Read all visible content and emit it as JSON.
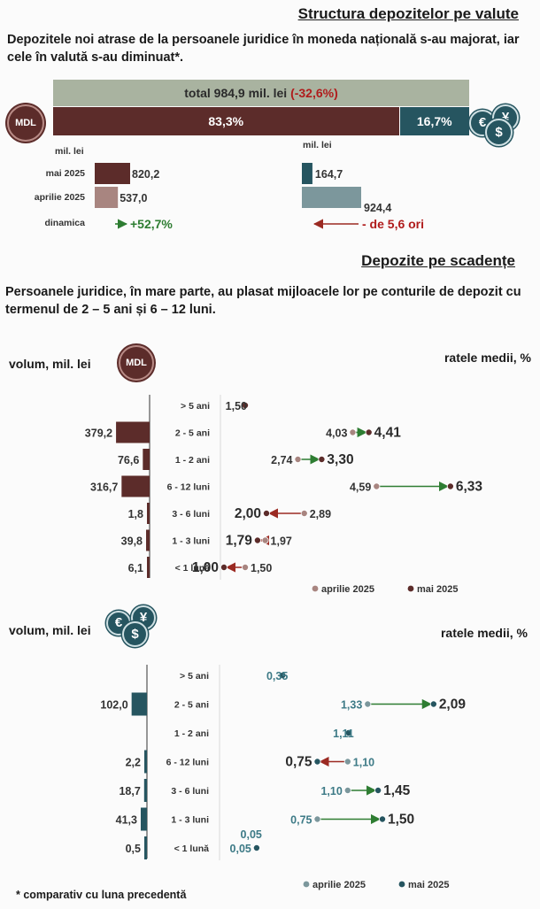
{
  "section1": {
    "title": "Structura depozitelor pe valute",
    "lead": "Depozitele noi atrase de la persoanele juridice în moneda națională s-au majorat, iar cele în valută s-au diminuat*.",
    "total_label": "total 984,9 mil. lei",
    "total_change": "(-32,6%)",
    "share_mdl": "83,3%",
    "share_fx": "16,7%",
    "share_mdl_value": 83.3,
    "share_fx_value": 16.7,
    "mdl_badge": "MDL",
    "fx_icons": [
      "€",
      "¥",
      "$"
    ],
    "unit_left": "mil. lei",
    "unit_right": "mil. lei",
    "rows": [
      "mai 2025",
      "aprilie 2025",
      "dinamica"
    ],
    "mdl_values": [
      820.2,
      537.0
    ],
    "mdl_labels": [
      "820,2",
      "537,0"
    ],
    "fx_values": [
      164.7,
      924.4
    ],
    "fx_labels": [
      "164,7",
      "924,4"
    ],
    "mdl_dynamic": "+52,7%",
    "fx_dynamic": "- de 5,6 ori"
  },
  "section2": {
    "title": "Depozite pe scadențe",
    "lead": "Persoanele juridice, în mare parte, au plasat mijloacele lor pe conturile de depozit cu termenul de 2 – 5 ani și 6 – 12 luni.",
    "footnote": "* comparativ cu luna precedentă"
  },
  "chart_data": [
    {
      "type": "bar",
      "currency": "MDL",
      "badge": "MDL",
      "left_title": "volum, mil. lei",
      "right_title": "ratele medii, %",
      "categories": [
        "> 5 ani",
        "2 - 5 ani",
        "1 - 2 ani",
        "6 - 12 luni",
        "3 - 6 luni",
        "1 - 3 luni",
        "< 1 lună"
      ],
      "volume_values": [
        null,
        379.2,
        76.6,
        316.7,
        1.8,
        39.8,
        6.1
      ],
      "volume_labels": [
        "",
        "379,2",
        "76,6",
        "316,7",
        "1,8",
        "39,8",
        "6,1"
      ],
      "series": [
        {
          "name": "aprilie 2025",
          "values": [
            1.5,
            4.03,
            2.74,
            4.59,
            2.89,
            1.97,
            1.5
          ],
          "labels": [
            "",
            "4,03",
            "2,74",
            "4,59",
            "2,89",
            "1,97",
            "1,50"
          ]
        },
        {
          "name": "mai 2025",
          "values": [
            1.5,
            4.41,
            3.3,
            6.33,
            2.0,
            1.79,
            1.0
          ],
          "labels": [
            "1,50",
            "4,41",
            "3,30",
            "6,33",
            "2,00",
            "1,79",
            "1,00"
          ]
        }
      ],
      "colors": {
        "bar": "#5c2c2a",
        "april": "#a88580",
        "may": "#5c2c2a",
        "up": "#2e7d32",
        "down": "#9b2a22"
      }
    },
    {
      "type": "bar",
      "currency": "FX",
      "badge": [
        "€",
        "¥",
        "$"
      ],
      "left_title": "volum, mil. lei",
      "right_title": "ratele medii, %",
      "categories": [
        "> 5 ani",
        "2 - 5 ani",
        "1 - 2 ani",
        "6 - 12 luni",
        "3 - 6 luni",
        "1 - 3 luni",
        "< 1 lună"
      ],
      "volume_values": [
        null,
        102.0,
        null,
        2.2,
        18.7,
        41.3,
        0.5
      ],
      "volume_labels": [
        "",
        "102,0",
        "",
        "2,2",
        "18,7",
        "41,3",
        "0,5"
      ],
      "series": [
        {
          "name": "aprilie 2025",
          "values": [
            0.35,
            1.33,
            1.11,
            1.1,
            1.1,
            0.75,
            0.05
          ],
          "labels": [
            "",
            "1,33",
            "",
            "1,10",
            "1,10",
            "0,75",
            "0,05"
          ]
        },
        {
          "name": "mai 2025",
          "values": [
            0.35,
            2.09,
            1.11,
            0.75,
            1.45,
            1.5,
            0.05
          ],
          "labels": [
            "0,35",
            "2,09",
            "1,11",
            "0,75",
            "1,45",
            "1,50",
            "0,05"
          ]
        }
      ],
      "colors": {
        "bar": "#265560",
        "april": "#7c979c",
        "may": "#265560",
        "up": "#2e7d32",
        "down": "#9b2a22"
      }
    }
  ]
}
